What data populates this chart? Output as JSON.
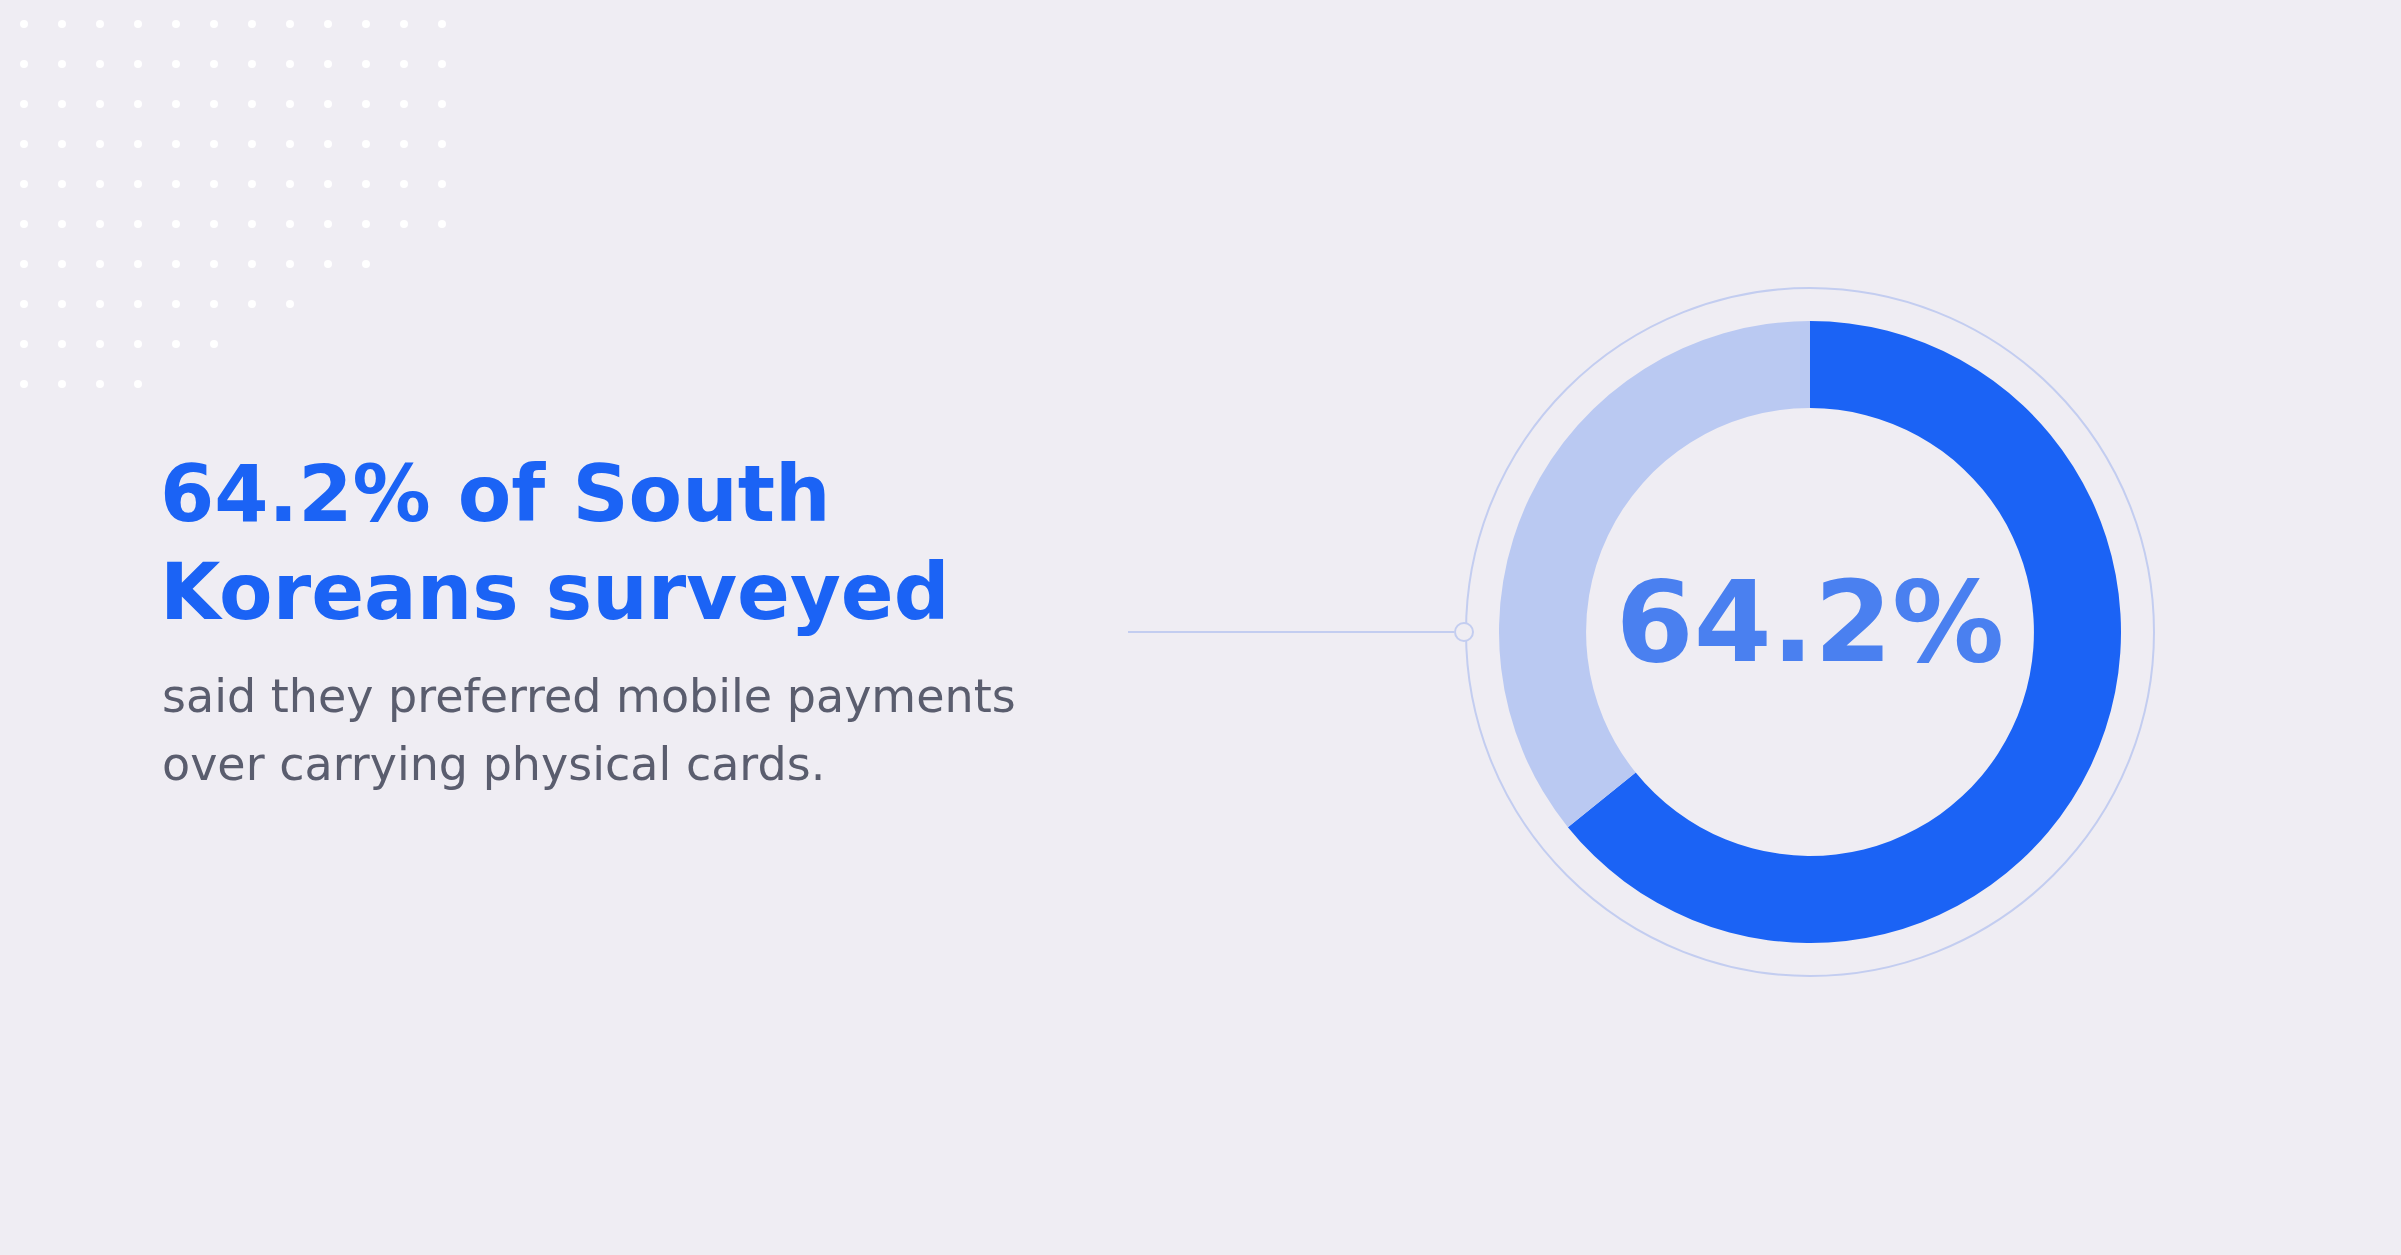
{
  "chart_data": {
    "type": "donut",
    "title": "64.2% of South Koreans surveyed",
    "subtitle": "said they preferred mobile payments over carrying physical cards.",
    "categories": [
      null,
      null
    ],
    "values": [
      64.2,
      35.8
    ],
    "colors": [
      "#1b63f5",
      "#bac9f2"
    ],
    "value_labels": [
      "64.2%",
      null
    ]
  }
}
